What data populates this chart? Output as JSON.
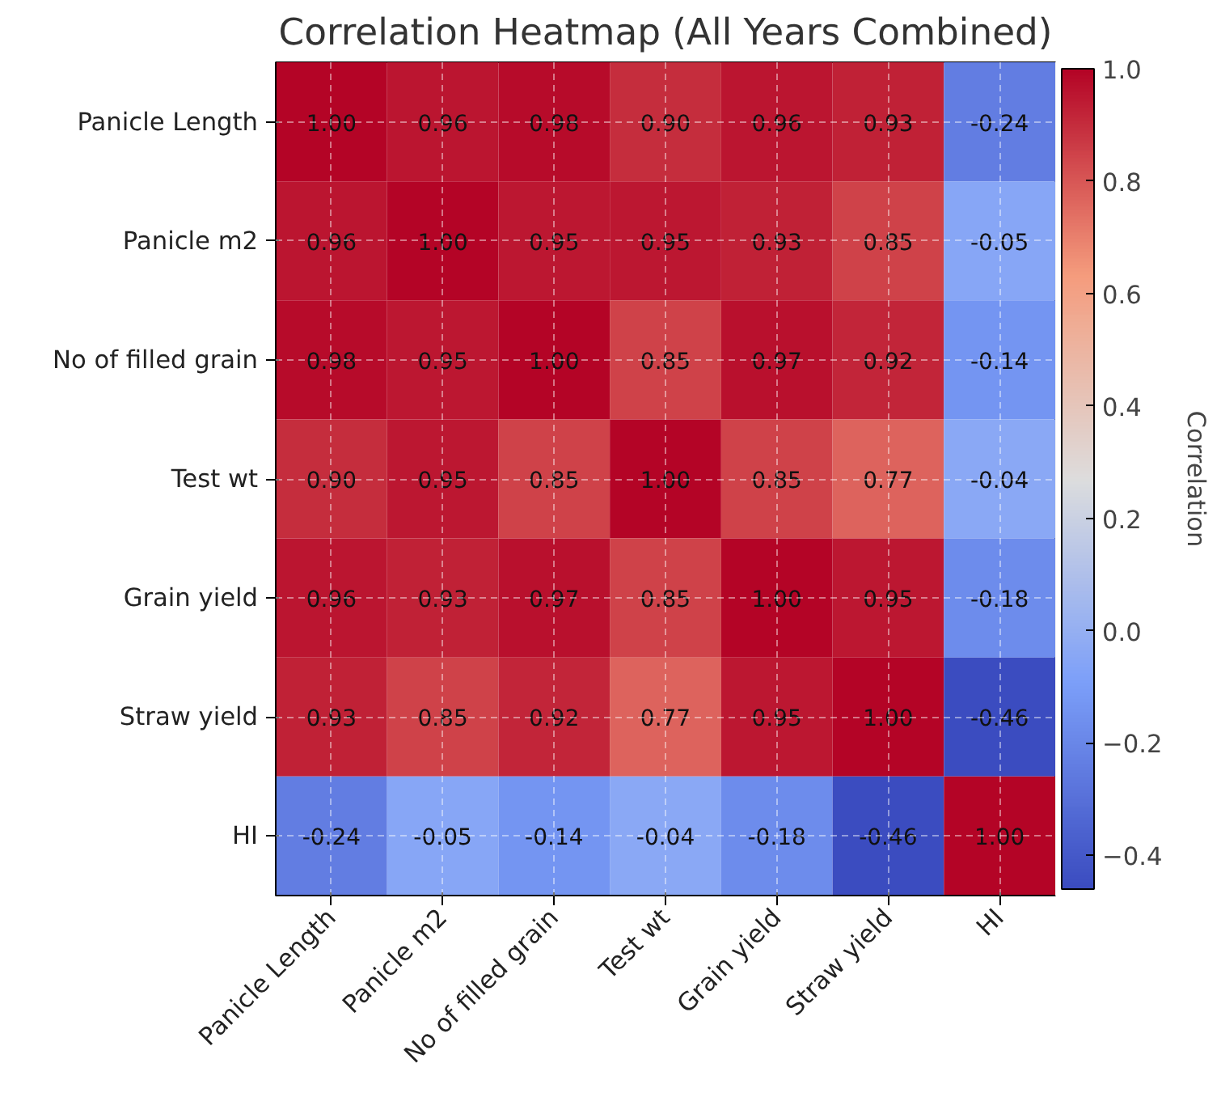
{
  "chart_data": {
    "type": "heatmap",
    "title": "Correlation Heatmap (All Years Combined)",
    "categories": [
      "Panicle Length",
      "Panicle m2",
      "No of filled grain",
      "Test wt",
      "Grain yield",
      "Straw yield",
      "HI"
    ],
    "y_categories": [
      "Panicle Length",
      "Panicle m2",
      "No of filled grain",
      "Test wt",
      "Grain yield",
      "Straw yield",
      "HI"
    ],
    "cells": [
      [
        1.0,
        0.96,
        0.98,
        0.9,
        0.96,
        0.93,
        -0.24
      ],
      [
        0.96,
        1.0,
        0.95,
        0.95,
        0.93,
        0.85,
        -0.05
      ],
      [
        0.98,
        0.95,
        1.0,
        0.85,
        0.97,
        0.92,
        -0.14
      ],
      [
        0.9,
        0.95,
        0.85,
        1.0,
        0.85,
        0.77,
        -0.04
      ],
      [
        0.96,
        0.93,
        0.97,
        0.85,
        1.0,
        0.95,
        -0.18
      ],
      [
        0.93,
        0.85,
        0.92,
        0.77,
        0.95,
        1.0,
        -0.46
      ],
      [
        -0.24,
        -0.05,
        -0.14,
        -0.04,
        -0.18,
        -0.46,
        1.0
      ]
    ],
    "cell_labels": [
      [
        "1.00",
        "0.96",
        "0.98",
        "0.90",
        "0.96",
        "0.93",
        "-0.24"
      ],
      [
        "0.96",
        "1.00",
        "0.95",
        "0.95",
        "0.93",
        "0.85",
        "-0.05"
      ],
      [
        "0.98",
        "0.95",
        "1.00",
        "0.85",
        "0.97",
        "0.92",
        "-0.14"
      ],
      [
        "0.90",
        "0.95",
        "0.85",
        "1.00",
        "0.85",
        "0.77",
        "-0.04"
      ],
      [
        "0.96",
        "0.93",
        "0.97",
        "0.85",
        "1.00",
        "0.95",
        "-0.18"
      ],
      [
        "0.93",
        "0.85",
        "0.92",
        "0.77",
        "0.95",
        "1.00",
        "-0.46"
      ],
      [
        "-0.24",
        "-0.05",
        "-0.14",
        "-0.04",
        "-0.18",
        "-0.46",
        "1.00"
      ]
    ],
    "clim": [
      -0.46,
      1.0
    ],
    "cticks": [
      {
        "value": -0.4,
        "label": "−0.4"
      },
      {
        "value": -0.2,
        "label": "−0.2"
      },
      {
        "value": 0.0,
        "label": "0.0"
      },
      {
        "value": 0.2,
        "label": "0.2"
      },
      {
        "value": 0.4,
        "label": "0.4"
      },
      {
        "value": 0.6,
        "label": "0.6"
      },
      {
        "value": 0.8,
        "label": "0.8"
      },
      {
        "value": 1.0,
        "label": "1.0"
      }
    ],
    "clabel": "Correlation",
    "grid": true
  }
}
